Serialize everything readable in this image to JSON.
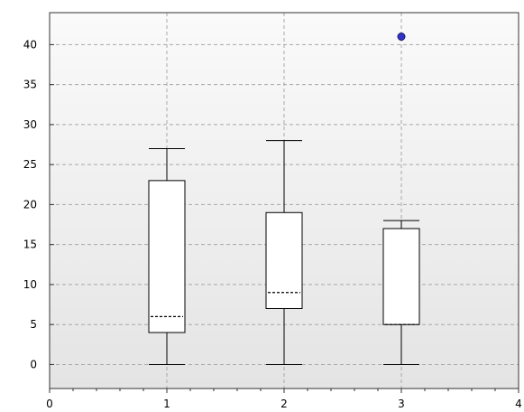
{
  "chart_data": {
    "type": "box",
    "title": "",
    "xlabel": "",
    "ylabel": "",
    "xlim": [
      0,
      4
    ],
    "ylim": [
      -3,
      44
    ],
    "x_ticks": [
      "0",
      "1",
      "2",
      "3",
      "4"
    ],
    "y_ticks": [
      "0",
      "5",
      "10",
      "15",
      "20",
      "25",
      "30",
      "35",
      "40"
    ],
    "grid": true,
    "colors": {
      "box_fill": "#ffffff",
      "outlier": "#3333cc",
      "grid": "#a8a8a8",
      "plot_bg_top": "#fafafa",
      "plot_bg_bottom": "#e4e4e4"
    },
    "boxes": [
      {
        "x": 1,
        "whisker_low": 0,
        "q1": 4,
        "median": 6,
        "q3": 23,
        "whisker_high": 27,
        "outliers": []
      },
      {
        "x": 2,
        "whisker_low": 0,
        "q1": 7,
        "median": 9,
        "q3": 19,
        "whisker_high": 28,
        "outliers": []
      },
      {
        "x": 3,
        "whisker_low": 0,
        "q1": 5,
        "median": 5,
        "q3": 17,
        "whisker_high": 18,
        "outliers": [
          41
        ]
      }
    ]
  }
}
